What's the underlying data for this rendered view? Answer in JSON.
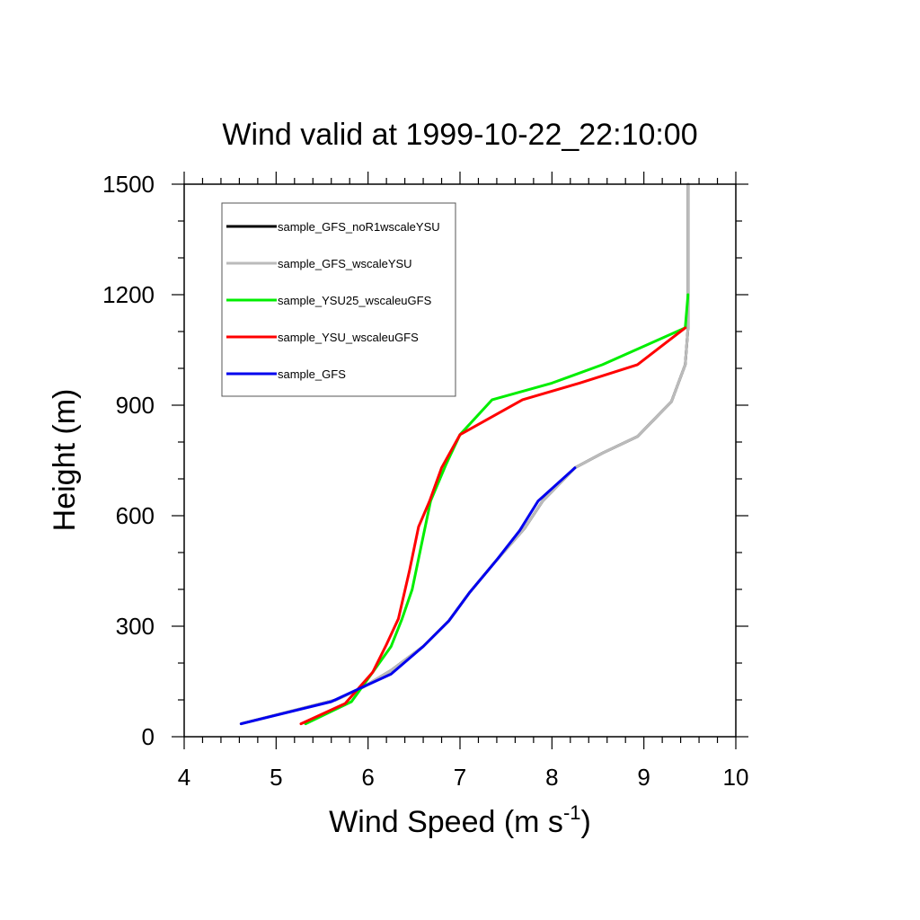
{
  "chart_data": {
    "type": "line",
    "title": "Wind valid at 1999-10-22_22:10:00",
    "xlabel": "Wind Speed (m s",
    "xlabel_superscript": "-1",
    "xlabel_suffix": ")",
    "ylabel": "Height (m)",
    "xlim": [
      4,
      10
    ],
    "ylim": [
      0,
      1500
    ],
    "x_major_ticks": [
      4,
      5,
      6,
      7,
      8,
      9,
      10
    ],
    "y_major_ticks": [
      0,
      300,
      600,
      900,
      1200,
      1500
    ],
    "x_tick_labels": [
      "4",
      "5",
      "6",
      "7",
      "8",
      "9",
      "10"
    ],
    "y_tick_labels": [
      "0",
      "300",
      "600",
      "900",
      "1200",
      "1500"
    ],
    "grid": false,
    "legend_position": "top-left",
    "series": [
      {
        "name": "sample_GFS_noR1wscaleYSU",
        "color": "#000000",
        "x": [
          4.62,
          5.65,
          5.95,
          6.25,
          6.6,
          6.88,
          7.1,
          7.4,
          7.7,
          7.9,
          8.25,
          8.55,
          8.93,
          9.3,
          9.45,
          9.48,
          9.48,
          9.48
        ],
        "y": [
          35,
          100,
          135,
          180,
          245,
          315,
          390,
          480,
          565,
          640,
          730,
          770,
          815,
          910,
          1010,
          1110,
          1250,
          1500
        ]
      },
      {
        "name": "sample_GFS_wscaleYSU",
        "color": "#bbbbbb",
        "x": [
          4.62,
          5.65,
          5.95,
          6.25,
          6.6,
          6.88,
          7.1,
          7.4,
          7.7,
          7.9,
          8.25,
          8.55,
          8.93,
          9.3,
          9.45,
          9.48,
          9.48,
          9.48
        ],
        "y": [
          35,
          100,
          135,
          180,
          245,
          315,
          390,
          480,
          565,
          640,
          730,
          770,
          815,
          910,
          1010,
          1110,
          1250,
          1500
        ]
      },
      {
        "name": "sample_YSU25_wscaleuGFS",
        "color": "#00ee00",
        "x": [
          5.32,
          5.82,
          6.05,
          6.25,
          6.37,
          6.48,
          6.58,
          6.68,
          6.85,
          7.0,
          7.35,
          8.0,
          8.55,
          9.45,
          9.48
        ],
        "y": [
          35,
          95,
          175,
          245,
          320,
          400,
          520,
          640,
          740,
          820,
          915,
          960,
          1010,
          1110,
          1200
        ]
      },
      {
        "name": "sample_YSU_wscaleuGFS",
        "color": "#ff0000",
        "x": [
          5.27,
          5.75,
          6.05,
          6.2,
          6.33,
          6.45,
          6.55,
          6.67,
          6.8,
          7.0,
          7.68,
          8.3,
          8.93,
          9.45
        ],
        "y": [
          35,
          90,
          175,
          250,
          320,
          450,
          570,
          640,
          730,
          820,
          915,
          960,
          1010,
          1110
        ]
      },
      {
        "name": "sample_GFS",
        "color": "#0000ee",
        "x": [
          4.62,
          5.6,
          5.9,
          6.25,
          6.6,
          6.88,
          7.1,
          7.4,
          7.65,
          7.85,
          8.25
        ],
        "y": [
          35,
          95,
          130,
          170,
          245,
          315,
          390,
          480,
          560,
          640,
          730
        ]
      }
    ]
  }
}
